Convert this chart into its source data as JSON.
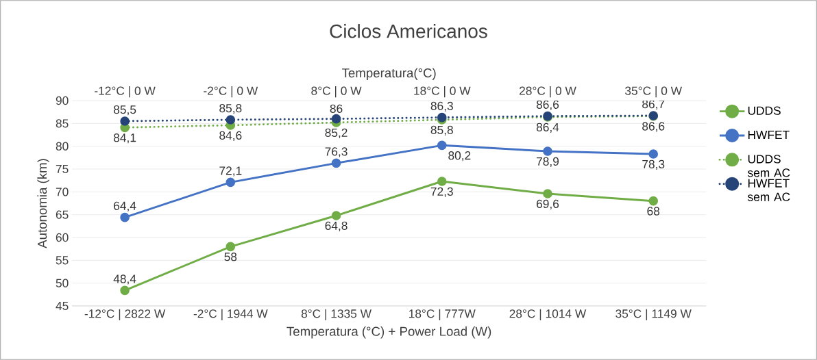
{
  "chart_data": {
    "type": "line",
    "title": "Ciclos Americanos",
    "x2label": "Temperatura(°C)",
    "xlabel": "Temperatura (°C) + Power Load (W)",
    "ylabel": "Autonomia (km)",
    "categories": [
      "-12°C | 2822 W",
      "-2°C | 1944 W",
      "8°C | 1335 W",
      "18°C | 777W",
      "28°C | 1014 W",
      "35°C | 1149 W"
    ],
    "annotations": [
      "-12°C | 0 W",
      "-2°C | 0 W",
      "8°C | 0 W",
      "18°C | 0 W",
      "28°C | 0 W",
      "35°C | 0 W"
    ],
    "ylim": [
      45,
      90
    ],
    "yticks": [
      45,
      50,
      55,
      60,
      65,
      70,
      75,
      80,
      85,
      90
    ],
    "grid": "y",
    "legend": "right",
    "marker": "circle",
    "series": [
      {
        "name": "UDDS",
        "color": "#70ad47",
        "line_style": "solid",
        "values": [
          48.4,
          58,
          64.8,
          72.3,
          69.6,
          68
        ],
        "value_labels": [
          "48,4",
          "58",
          "64,8",
          "72,3",
          "69,6",
          "68"
        ]
      },
      {
        "name": "HWFET",
        "color": "#4472c4",
        "line_style": "solid",
        "values": [
          64.4,
          72.1,
          76.3,
          80.2,
          78.9,
          78.3
        ],
        "value_labels": [
          "64,4",
          "72,1",
          "76,3",
          "80,2",
          "78,9",
          "78,3"
        ]
      },
      {
        "name": "UDDS sem AC",
        "color": "#70ad47",
        "line_style": "dotted",
        "values": [
          84.1,
          84.6,
          85.2,
          85.8,
          86.4,
          86.6
        ],
        "value_labels": [
          "84,1",
          "84,6",
          "85,2",
          "85,8",
          "86,4",
          "86,6"
        ]
      },
      {
        "name": "HWFET sem AC",
        "color": "#264478",
        "line_style": "dotted",
        "values": [
          85.5,
          85.8,
          86,
          86.3,
          86.6,
          86.7
        ],
        "value_labels": [
          "85,5",
          "85,8",
          "86",
          "86,3",
          "86,6",
          "86,7"
        ]
      }
    ]
  }
}
